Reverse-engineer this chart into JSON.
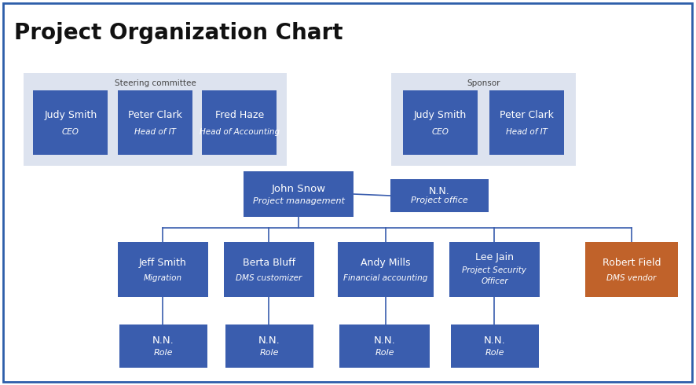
{
  "title": "Project Organization Chart",
  "title_fontsize": 20,
  "title_fontweight": "bold",
  "bg_color": "#ffffff",
  "border_color": "#2e5eaa",
  "box_blue": "#3a5dae",
  "box_orange": "#c0622a",
  "group_bg": "#dde3ef",
  "text_white": "#ffffff",
  "text_group_label": "#555555",
  "line_color": "#3a5dae",
  "steering_label": "Steering committee",
  "sponsor_label": "Sponsor",
  "steering_boxes": [
    {
      "name": "Judy Smith",
      "role": "CEO"
    },
    {
      "name": "Peter Clark",
      "role": "Head of IT"
    },
    {
      "name": "Fred Haze",
      "role": "Head of Accounting"
    }
  ],
  "sponsor_boxes": [
    {
      "name": "Judy Smith",
      "role": "CEO"
    },
    {
      "name": "Peter Clark",
      "role": "Head of IT"
    }
  ],
  "level2_boxes": [
    {
      "name": "Jeff Smith",
      "role": "Migration",
      "color": "blue"
    },
    {
      "name": "Berta Bluff",
      "role": "DMS customizer",
      "color": "blue"
    },
    {
      "name": "Andy Mills",
      "role": "Financial accounting",
      "color": "blue"
    },
    {
      "name": "Lee Jain",
      "role": "Project Security\nOfficer",
      "color": "blue"
    },
    {
      "name": "Robert Field",
      "role": "DMS vendor",
      "color": "orange"
    }
  ],
  "level3_boxes": [
    {
      "name": "N.N.",
      "role": "Role",
      "color": "blue"
    },
    {
      "name": "N.N.",
      "role": "Role",
      "color": "blue"
    },
    {
      "name": "N.N.",
      "role": "Role",
      "color": "blue"
    },
    {
      "name": "N.N.",
      "role": "Role",
      "color": "blue"
    }
  ],
  "john_snow": {
    "name": "John Snow",
    "role": "Project management"
  },
  "nn_office": {
    "name": "N.N.",
    "role": "Project office"
  }
}
